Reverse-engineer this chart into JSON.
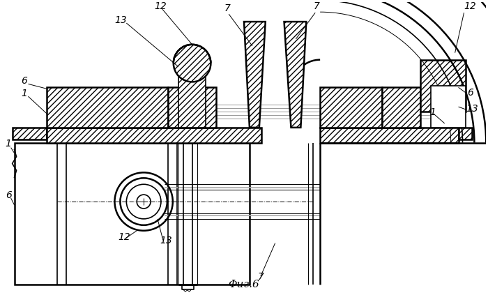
{
  "bg_color": "#ffffff",
  "fig_width": 7.0,
  "fig_height": 4.23,
  "dpi": 100,
  "title": "Φиг.6"
}
